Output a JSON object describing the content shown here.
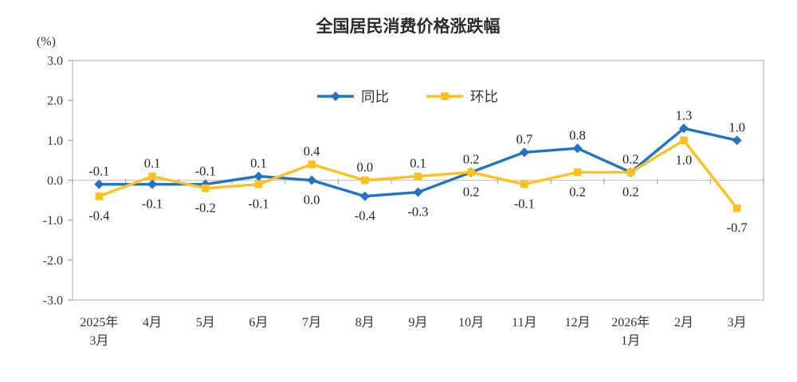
{
  "page": {
    "background": "#ffffff"
  },
  "chart_data": {
    "type": "line",
    "title": "全国居民消费价格涨跌幅",
    "unit_label": "(%)",
    "categories": [
      "2025年\n3月",
      "4月",
      "5月",
      "6月",
      "7月",
      "8月",
      "9月",
      "10月",
      "11月",
      "12月",
      "2026年\n1月",
      "2月",
      "3月"
    ],
    "series": [
      {
        "id": "yoy",
        "name": "同比",
        "color": "#2173c4",
        "marker": "diamond",
        "values": [
          -0.1,
          -0.1,
          -0.1,
          0.1,
          0.0,
          -0.4,
          -0.3,
          0.2,
          0.7,
          0.8,
          0.2,
          1.3,
          1.0
        ]
      },
      {
        "id": "mom",
        "name": "环比",
        "color": "#ffc01e",
        "marker": "square",
        "values": [
          -0.4,
          0.1,
          -0.2,
          -0.1,
          0.4,
          0.0,
          0.1,
          0.2,
          -0.1,
          0.2,
          0.2,
          1.0,
          -0.7
        ]
      }
    ],
    "ylim": [
      -3.0,
      3.0
    ],
    "ytick_step": 1.0,
    "ytick_labels": [
      "3.0",
      "2.0",
      "1.0",
      "0.0",
      "-1.0",
      "-2.0",
      "-3.0"
    ],
    "grid": false,
    "legend_position": "top-center",
    "colors": {
      "axis": "#bdbdbd",
      "zero_line": "#c8c8c8",
      "tick": "#a9a9a9",
      "axis_text": "#333333",
      "data_label": "#242424"
    }
  }
}
